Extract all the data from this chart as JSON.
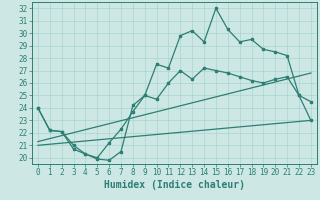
{
  "xlabel": "Humidex (Indice chaleur)",
  "background_color": "#cde8e4",
  "grid_color": "#a8d4cf",
  "line_color": "#2d7e74",
  "xlim": [
    -0.5,
    23.5
  ],
  "ylim": [
    19.5,
    32.5
  ],
  "yticks": [
    20,
    21,
    22,
    23,
    24,
    25,
    26,
    27,
    28,
    29,
    30,
    31,
    32
  ],
  "xticks": [
    0,
    1,
    2,
    3,
    4,
    5,
    6,
    7,
    8,
    9,
    10,
    11,
    12,
    13,
    14,
    15,
    16,
    17,
    18,
    19,
    20,
    21,
    22,
    23
  ],
  "curve1_x": [
    0,
    1,
    2,
    3,
    4,
    5,
    6,
    7,
    8,
    9,
    10,
    11,
    12,
    13,
    14,
    15,
    16,
    17,
    18,
    19,
    20,
    21,
    22,
    23
  ],
  "curve1_y": [
    24.0,
    22.2,
    22.1,
    20.7,
    20.3,
    19.9,
    19.8,
    20.5,
    24.2,
    25.0,
    27.5,
    27.2,
    29.8,
    30.2,
    29.3,
    32.0,
    30.3,
    29.3,
    29.5,
    28.7,
    28.5,
    28.2,
    25.0,
    24.5
  ],
  "curve2_x": [
    0,
    1,
    2,
    3,
    4,
    5,
    6,
    7,
    8,
    9,
    10,
    11,
    12,
    13,
    14,
    15,
    16,
    17,
    18,
    19,
    20,
    21,
    22,
    23
  ],
  "curve2_y": [
    24.0,
    22.2,
    22.1,
    21.0,
    20.3,
    20.0,
    21.2,
    22.3,
    23.7,
    25.0,
    24.7,
    26.0,
    27.0,
    26.3,
    27.2,
    27.0,
    26.8,
    26.5,
    26.2,
    26.0,
    26.3,
    26.5,
    25.0,
    23.0
  ],
  "line3_x": [
    0,
    23
  ],
  "line3_y": [
    21.0,
    23.0
  ],
  "line4_x": [
    0,
    23
  ],
  "line4_y": [
    21.3,
    26.8
  ],
  "marker_size": 2.0,
  "line_width": 0.9,
  "font_size_axis": 7,
  "font_size_ticks": 5.5
}
